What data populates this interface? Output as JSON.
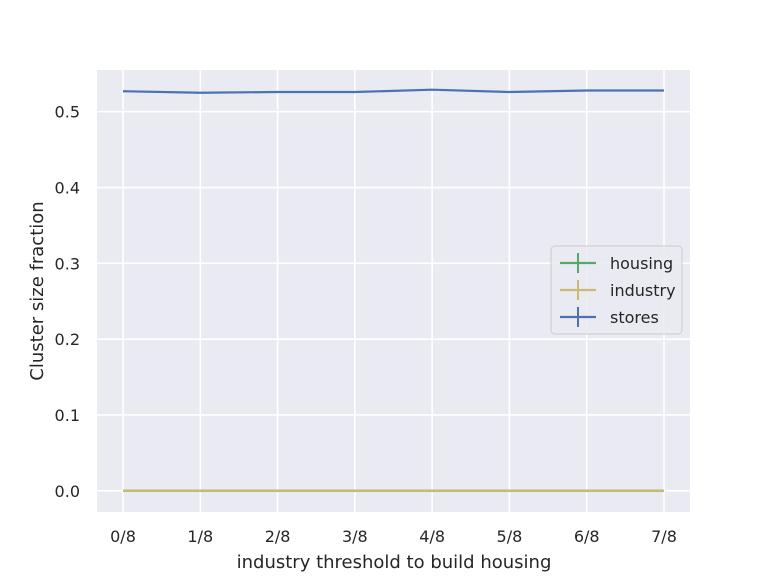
{
  "chart_data": {
    "type": "line",
    "title": "",
    "xlabel": "industry threshold to build housing",
    "ylabel": "Cluster size fraction",
    "categories": [
      "0/8",
      "1/8",
      "2/8",
      "3/8",
      "4/8",
      "5/8",
      "6/8",
      "7/8"
    ],
    "ylim": [
      -0.028,
      0.555
    ],
    "yticks": [
      0.0,
      0.1,
      0.2,
      0.3,
      0.4,
      0.5
    ],
    "ytick_labels": [
      "0.0",
      "0.1",
      "0.2",
      "0.3",
      "0.4",
      "0.5"
    ],
    "grid": true,
    "legend_position": "center-right",
    "background_color": "#eaeaf2",
    "grid_color": "#ffffff",
    "series": [
      {
        "name": "housing",
        "color": "#55a868",
        "values": [
          0.0,
          0.0,
          0.0,
          0.0,
          0.0,
          0.0,
          0.0,
          0.0
        ]
      },
      {
        "name": "industry",
        "color": "#ccb974",
        "values": [
          0.0,
          0.0,
          0.0,
          0.0,
          0.0,
          0.0,
          0.0,
          0.0
        ]
      },
      {
        "name": "stores",
        "color": "#4c72b0",
        "values": [
          0.527,
          0.525,
          0.526,
          0.526,
          0.529,
          0.526,
          0.528,
          0.528
        ]
      }
    ]
  }
}
